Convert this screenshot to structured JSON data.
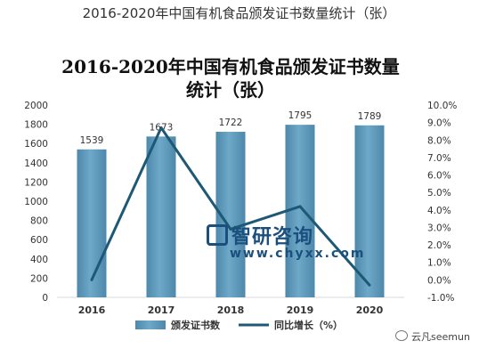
{
  "page_title": "2016-2020年中国有机食品颁发证书数量统计（张）",
  "watermark": {
    "brand": "智研咨询",
    "url": "www.chyxx.com",
    "logo_icon": "chyxx-logo-icon"
  },
  "source_mark": {
    "icon": "wechat-icon",
    "text": "云凡seemun"
  },
  "colors": {
    "bar": "#6fa9c9",
    "bar_dark": "#4d87aa",
    "line": "#1d5874",
    "text": "#333333"
  },
  "chart_data": {
    "type": "bar",
    "title_lines": [
      "2016-2020年中国有机食品颁发证书数量",
      "统计（张）"
    ],
    "categories": [
      "2016",
      "2017",
      "2018",
      "2019",
      "2020"
    ],
    "series": [
      {
        "name": "颁发证书数",
        "type": "bar",
        "axis": "left",
        "values": [
          1539,
          1673,
          1722,
          1795,
          1789
        ],
        "labels": [
          "1539",
          "1673",
          "1722",
          "1795",
          "1789"
        ]
      },
      {
        "name": "同比增长（%）",
        "type": "line",
        "axis": "right",
        "values": [
          0.0,
          8.7,
          2.9,
          4.2,
          -0.3
        ]
      }
    ],
    "y_left": {
      "min": 0,
      "max": 2000,
      "step": 200,
      "ticks": [
        "0",
        "200",
        "400",
        "600",
        "800",
        "1000",
        "1200",
        "1400",
        "1600",
        "1800",
        "2000"
      ]
    },
    "y_right": {
      "min": -1.0,
      "max": 10.0,
      "step": 1.0,
      "ticks": [
        "-1.0%",
        "0.0%",
        "1.0%",
        "2.0%",
        "3.0%",
        "4.0%",
        "5.0%",
        "6.0%",
        "7.0%",
        "8.0%",
        "9.0%",
        "10.0%"
      ]
    },
    "grid": false,
    "legend_position": "bottom"
  }
}
